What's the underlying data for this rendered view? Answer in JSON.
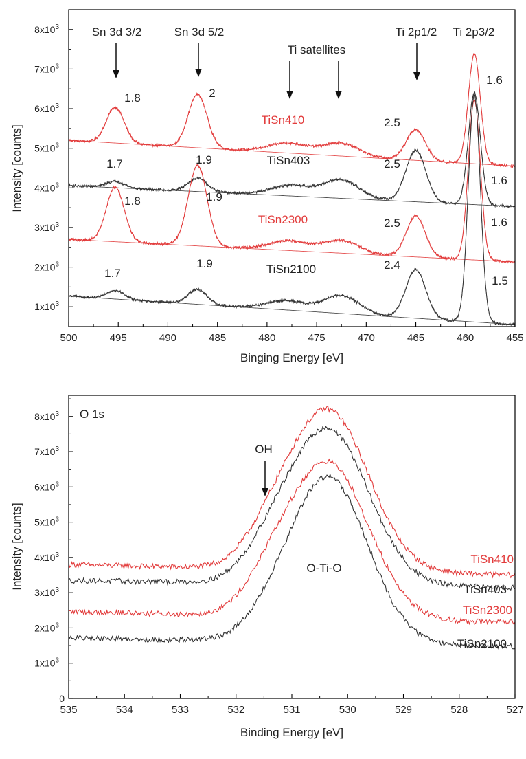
{
  "chart_data": [
    {
      "type": "line",
      "xlabel": "Binging Energy [eV]",
      "ylabel": "Intensity [counts]",
      "xlim": [
        500,
        455
      ],
      "ylim": [
        500,
        8500
      ],
      "x_ticks": [
        "500",
        "495",
        "490",
        "485",
        "480",
        "475",
        "470",
        "465",
        "460",
        "455"
      ],
      "y_ticks": [
        {
          "mantissa": "1x10",
          "exp": "3"
        },
        {
          "mantissa": "2x10",
          "exp": "3"
        },
        {
          "mantissa": "3x10",
          "exp": "3"
        },
        {
          "mantissa": "4x10",
          "exp": "3"
        },
        {
          "mantissa": "5x10",
          "exp": "3"
        },
        {
          "mantissa": "6x10",
          "exp": "3"
        },
        {
          "mantissa": "7x10",
          "exp": "3"
        },
        {
          "mantissa": "8x10",
          "exp": "3"
        }
      ],
      "peak_labels": [
        "Sn 3d 3/2",
        "Sn 3d 5/2",
        "Ti satellites",
        "Ti 2p1/2",
        "Ti 2p3/2"
      ],
      "series": [
        {
          "name": "TiSn410",
          "color": "#e23b3b",
          "baseline": [
            5200,
            4550
          ],
          "peaks": [
            [
              495.3,
              900,
              0.9
            ],
            [
              487.0,
              1350,
              0.95
            ],
            [
              477.8,
              250,
              2.0
            ],
            [
              472.5,
              320,
              1.8
            ],
            [
              465.0,
              780,
              0.95
            ],
            [
              459.1,
              2780,
              0.6
            ]
          ],
          "widths": [
            "1.8",
            "2",
            "2.5",
            "1.6"
          ]
        },
        {
          "name": "TiSn403",
          "color": "#333333",
          "baseline": [
            4060,
            3530
          ],
          "peaks": [
            [
              495.3,
              160,
              0.9
            ],
            [
              487.0,
              340,
              0.95
            ],
            [
              477.5,
              270,
              2.0
            ],
            [
              472.5,
              460,
              1.8
            ],
            [
              465.0,
              1300,
              1.0
            ],
            [
              459.1,
              2830,
              0.6
            ]
          ],
          "widths": [
            "1.7",
            "1.9",
            "2.5",
            "1.6"
          ]
        },
        {
          "name": "TiSn2300",
          "color": "#e23b3b",
          "baseline": [
            2700,
            2130
          ],
          "peaks": [
            [
              495.3,
              1380,
              0.9
            ],
            [
              487.0,
              2030,
              0.95
            ],
            [
              477.8,
              240,
              2.0
            ],
            [
              472.5,
              320,
              1.8
            ],
            [
              465.0,
              1030,
              0.95
            ],
            [
              459.1,
              4040,
              0.6
            ]
          ],
          "widths": [
            "1.8",
            "1.9",
            "2.5",
            "1.6"
          ]
        },
        {
          "name": "TiSn2100",
          "color": "#333333",
          "baseline": [
            1270,
            550
          ],
          "peaks": [
            [
              495.3,
              220,
              0.9
            ],
            [
              487.0,
              380,
              0.95
            ],
            [
              478.0,
              230,
              2.0
            ],
            [
              472.5,
              450,
              1.8
            ],
            [
              465.0,
              1230,
              1.0
            ],
            [
              459.1,
              5730,
              0.6
            ]
          ],
          "widths": [
            "1.7",
            "1.9",
            "2.4",
            "1.5"
          ]
        }
      ]
    },
    {
      "type": "line",
      "panel_label": "O 1s",
      "xlabel": "Binding Energy [eV]",
      "ylabel": "Intensity [counts]",
      "xlim": [
        535,
        527
      ],
      "ylim": [
        0,
        8600
      ],
      "x_ticks": [
        "535",
        "534",
        "533",
        "532",
        "531",
        "530",
        "529",
        "528",
        "527"
      ],
      "y_ticks": [
        {
          "mantissa": "0",
          "exp": ""
        },
        {
          "mantissa": "1x10",
          "exp": "3"
        },
        {
          "mantissa": "2x10",
          "exp": "3"
        },
        {
          "mantissa": "3x10",
          "exp": "3"
        },
        {
          "mantissa": "4x10",
          "exp": "3"
        },
        {
          "mantissa": "5x10",
          "exp": "3"
        },
        {
          "mantissa": "6x10",
          "exp": "3"
        },
        {
          "mantissa": "7x10",
          "exp": "3"
        },
        {
          "mantissa": "8x10",
          "exp": "3"
        }
      ],
      "annotations": [
        "OH",
        "O-Ti-O"
      ],
      "series": [
        {
          "name": "TiSn410",
          "color": "#e23b3b",
          "baseline": [
            3800,
            3500
          ],
          "peak": [
            530.35,
            4550,
            0.72
          ],
          "shoulder": [
            531.4,
            600,
            0.45
          ]
        },
        {
          "name": "TiSn403",
          "color": "#333333",
          "baseline": [
            3350,
            3150
          ],
          "peak": [
            530.35,
            4400,
            0.72
          ],
          "shoulder": [
            531.4,
            600,
            0.45
          ]
        },
        {
          "name": "TiSn2300",
          "color": "#e23b3b",
          "baseline": [
            2470,
            2150
          ],
          "peak": [
            530.35,
            4400,
            0.72
          ],
          "shoulder": [
            531.4,
            650,
            0.45
          ]
        },
        {
          "name": "TiSn2100",
          "color": "#333333",
          "baseline": [
            1720,
            1480
          ],
          "peak": [
            530.35,
            4700,
            0.7
          ],
          "shoulder": [
            531.4,
            300,
            0.45
          ]
        }
      ]
    }
  ]
}
